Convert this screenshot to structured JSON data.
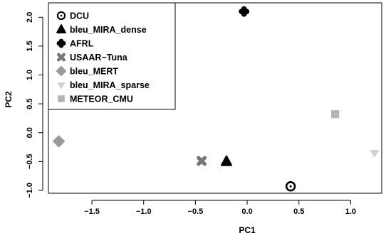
{
  "chart_data": {
    "type": "scatter",
    "title": "",
    "xlabel": "PC1",
    "ylabel": "PC2",
    "xlim": [
      -1.92,
      1.3
    ],
    "ylim": [
      -1.05,
      2.25
    ],
    "xticks": [
      -1.5,
      -1.0,
      -0.5,
      0.0,
      0.5,
      1.0
    ],
    "xtick_labels": [
      "−1.5",
      "−1.0",
      "−0.5",
      "0.0",
      "0.5",
      "1.0"
    ],
    "yticks": [
      -1.0,
      -0.5,
      0.0,
      0.5,
      1.0,
      1.5,
      2.0
    ],
    "ytick_labels": [
      "−1.0",
      "−0.5",
      "0.0",
      "0.5",
      "1.0",
      "1.5",
      "2.0"
    ],
    "grid": false,
    "legend_position": "top-left",
    "series": [
      {
        "name": "DCU",
        "marker": "target-circle",
        "color": "#000000",
        "x": 0.42,
        "y": -0.93
      },
      {
        "name": "bleu_MIRA_dense",
        "marker": "triangle",
        "color": "#000000",
        "x": -0.2,
        "y": -0.5
      },
      {
        "name": "AFRL",
        "marker": "clover",
        "color": "#000000",
        "x": -0.03,
        "y": 2.1
      },
      {
        "name": "USAAR−Tuna",
        "marker": "x-cross",
        "color": "#777777",
        "x": -0.44,
        "y": -0.49
      },
      {
        "name": "bleu_MERT",
        "marker": "diamond",
        "color": "#9a9a9a",
        "x": -1.82,
        "y": -0.15
      },
      {
        "name": "bleu_MIRA_sparse",
        "marker": "down-triangle",
        "color": "#cfcfcf",
        "x": 1.23,
        "y": -0.35
      },
      {
        "name": "METEOR_CMU",
        "marker": "square",
        "color": "#b5b5b5",
        "x": 0.85,
        "y": 0.32
      }
    ]
  }
}
